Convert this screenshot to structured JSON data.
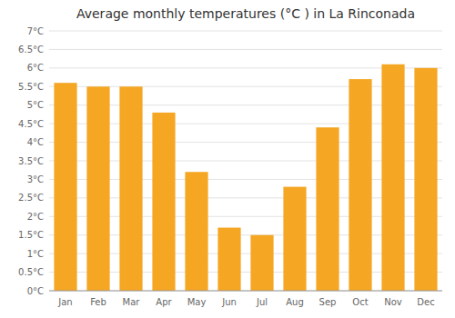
{
  "chart_data": {
    "type": "bar",
    "title": "Average monthly temperatures (°C ) in La Rinconada",
    "categories": [
      "Jan",
      "Feb",
      "Mar",
      "Apr",
      "May",
      "Jun",
      "Jul",
      "Aug",
      "Sep",
      "Oct",
      "Nov",
      "Dec"
    ],
    "values": [
      5.6,
      5.5,
      5.5,
      4.8,
      3.2,
      1.7,
      1.5,
      2.8,
      4.4,
      5.7,
      6.1,
      6.0
    ],
    "color": "#F5A623",
    "ylim": [
      0,
      7.0
    ],
    "yticks": [
      {
        "value": 0,
        "label": "0°C"
      },
      {
        "value": 0.5,
        "label": "0.5°C"
      },
      {
        "value": 1,
        "label": "1°C"
      },
      {
        "value": 1.5,
        "label": "1.5°C"
      },
      {
        "value": 2,
        "label": "2°C"
      },
      {
        "value": 2.5,
        "label": "2.5°C"
      },
      {
        "value": 3,
        "label": "3°C"
      },
      {
        "value": 3.5,
        "label": "3.5°C"
      },
      {
        "value": 4,
        "label": "4°C"
      },
      {
        "value": 4.5,
        "label": "4.5°C"
      },
      {
        "value": 5,
        "label": "5°C"
      },
      {
        "value": 5.5,
        "label": "5.5°C"
      },
      {
        "value": 6,
        "label": "6°C"
      },
      {
        "value": 6.5,
        "label": "6.5°C"
      },
      {
        "value": 7,
        "label": "7°C"
      }
    ],
    "grid": true
  }
}
